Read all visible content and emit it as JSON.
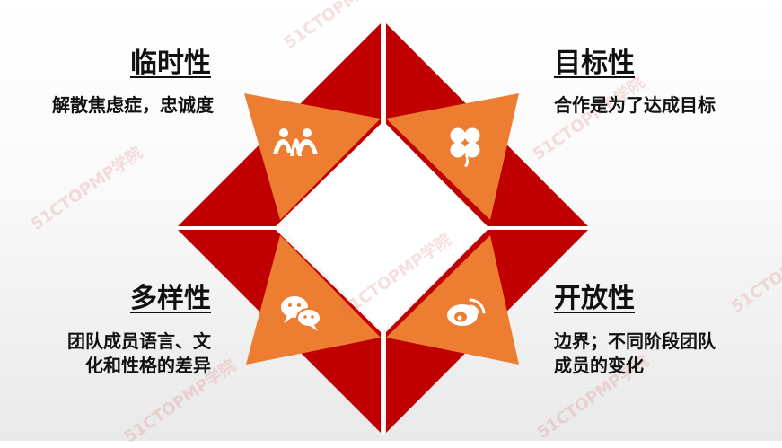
{
  "quadrants": {
    "top_left": {
      "title": "临时性",
      "desc_line1": "解散焦虑症，忠诚度",
      "desc_line2": "",
      "icon": "people-icon"
    },
    "top_right": {
      "title": "目标性",
      "desc_line1": "合作是为了达成目标",
      "desc_line2": "",
      "icon": "clover-icon"
    },
    "bottom_left": {
      "title": "多样性",
      "desc_line1": "团队成员语言、文",
      "desc_line2": "化和性格的差异",
      "icon": "chat-bubbles-icon"
    },
    "bottom_right": {
      "title": "开放性",
      "desc_line1": "边界；不同阶段团队",
      "desc_line2": "成员的变化",
      "icon": "weibo-icon"
    }
  },
  "watermark": "51CTOPMP学院",
  "colors": {
    "dark_red": "#C00000",
    "orange": "#ED7D31",
    "white": "#FFFFFF",
    "text": "#111111"
  }
}
